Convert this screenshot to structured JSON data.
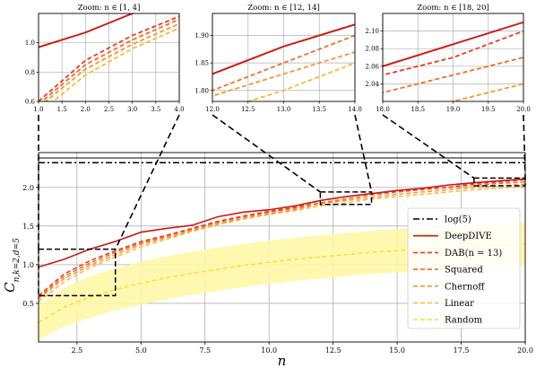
{
  "chart_data": [
    {
      "type": "line",
      "role": "main",
      "xlabel": "n",
      "ylabel": "C_{n,k=2,d=5}",
      "xlim": [
        1,
        20
      ],
      "ylim": [
        0.0,
        2.45
      ],
      "xticks": [
        "2.5",
        "5.0",
        "7.5",
        "10.0",
        "12.5",
        "15.0",
        "17.5",
        "20.0"
      ],
      "yticks": [
        "0.5",
        "1.0",
        "1.5",
        "2.0"
      ],
      "grid": true,
      "legend_position": "lower-right",
      "colors": {
        "log5": "#000000",
        "DeepDIVE": "#cc1a14",
        "DAB": "#ee3a22",
        "Squared": "#f26b28",
        "Chernoff": "#f7952e",
        "Linear": "#f9b838",
        "Random": "#f7e035",
        "random_band": "#fff7a8"
      },
      "legend": [
        "log(5)",
        "DeepDIVE",
        "DAB(n = 13)",
        "Squared",
        "Chernoff",
        "Linear",
        "Random"
      ],
      "x": [
        1,
        2,
        3,
        4,
        5,
        6,
        7,
        8,
        9,
        10,
        11,
        12,
        13,
        14,
        15,
        16,
        17,
        18,
        19,
        20
      ],
      "hline": {
        "name": "log(5)",
        "y": 2.32
      },
      "hline_solid": {
        "y": 2.38
      },
      "series": [
        {
          "name": "DeepDIVE",
          "values": [
            0.97,
            1.07,
            1.2,
            1.3,
            1.42,
            1.47,
            1.51,
            1.62,
            1.68,
            1.71,
            1.76,
            1.83,
            1.88,
            1.92,
            1.96,
            1.99,
            2.03,
            2.06,
            2.085,
            2.11
          ]
        },
        {
          "name": "DAB(n = 13)",
          "values": [
            0.6,
            0.88,
            1.05,
            1.18,
            1.3,
            1.38,
            1.47,
            1.56,
            1.63,
            1.69,
            1.74,
            1.83,
            1.88,
            1.92,
            1.95,
            1.98,
            2.0,
            2.05,
            2.07,
            2.1
          ]
        },
        {
          "name": "Squared",
          "values": [
            0.58,
            0.85,
            1.02,
            1.16,
            1.28,
            1.37,
            1.46,
            1.55,
            1.62,
            1.68,
            1.73,
            1.8,
            1.85,
            1.9,
            1.94,
            1.97,
            2.0,
            2.03,
            2.05,
            2.07
          ]
        },
        {
          "name": "Chernoff",
          "values": [
            0.56,
            0.82,
            0.99,
            1.13,
            1.26,
            1.35,
            1.44,
            1.53,
            1.6,
            1.66,
            1.71,
            1.79,
            1.83,
            1.87,
            1.91,
            1.94,
            1.97,
            2.0,
            2.02,
            2.04
          ]
        },
        {
          "name": "Linear",
          "values": [
            0.52,
            0.78,
            0.96,
            1.1,
            1.23,
            1.33,
            1.43,
            1.52,
            1.59,
            1.65,
            1.7,
            1.76,
            1.8,
            1.85,
            1.88,
            1.91,
            1.94,
            1.97,
            1.99,
            2.01
          ]
        },
        {
          "name": "Random",
          "values": [
            0.25,
            0.45,
            0.58,
            0.68,
            0.76,
            0.83,
            0.89,
            0.94,
            0.99,
            1.03,
            1.07,
            1.1,
            1.13,
            1.16,
            1.18,
            1.2,
            1.22,
            1.24,
            1.25,
            1.27
          ]
        }
      ],
      "random_band": {
        "lower": [
          0.02,
          0.2,
          0.31,
          0.41,
          0.48,
          0.55,
          0.61,
          0.66,
          0.71,
          0.75,
          0.79,
          0.82,
          0.85,
          0.88,
          0.9,
          0.92,
          0.94,
          0.96,
          0.97,
          0.99
        ],
        "upper": [
          0.48,
          0.7,
          0.85,
          0.95,
          1.04,
          1.11,
          1.17,
          1.22,
          1.27,
          1.31,
          1.35,
          1.38,
          1.41,
          1.44,
          1.46,
          1.48,
          1.5,
          1.52,
          1.53,
          1.55
        ]
      },
      "zoom_boxes": [
        {
          "x": [
            1,
            4
          ],
          "y": [
            0.6,
            1.2
          ]
        },
        {
          "x": [
            12,
            14
          ],
          "y": [
            1.78,
            1.94
          ]
        },
        {
          "x": [
            18,
            20
          ],
          "y": [
            2.02,
            2.12
          ]
        }
      ]
    },
    {
      "type": "line",
      "role": "inset",
      "title": "Zoom: n ∈ [1, 4]",
      "xlim": [
        1,
        4
      ],
      "ylim": [
        0.6,
        1.2
      ],
      "xticks": [
        "1.0",
        "1.5",
        "2.0",
        "2.5",
        "3.0",
        "3.5",
        "4.0"
      ],
      "yticks": [
        "0.6",
        "0.8",
        "1.0"
      ],
      "grid": true
    },
    {
      "type": "line",
      "role": "inset",
      "title": "Zoom: n ∈ [12, 14]",
      "xlim": [
        12,
        14
      ],
      "ylim": [
        1.78,
        1.94
      ],
      "xticks": [
        "12.0",
        "12.5",
        "13.0",
        "13.5",
        "14.0"
      ],
      "yticks": [
        "1.80",
        "1.85",
        "1.90"
      ],
      "grid": true
    },
    {
      "type": "line",
      "role": "inset",
      "title": "Zoom: n ∈ [18, 20]",
      "xlim": [
        18,
        20
      ],
      "ylim": [
        2.02,
        2.12
      ],
      "xticks": [
        "18.0",
        "18.5",
        "19.0",
        "19.5",
        "20.0"
      ],
      "yticks": [
        "2.04",
        "2.06",
        "2.08",
        "2.10"
      ],
      "grid": true
    }
  ]
}
